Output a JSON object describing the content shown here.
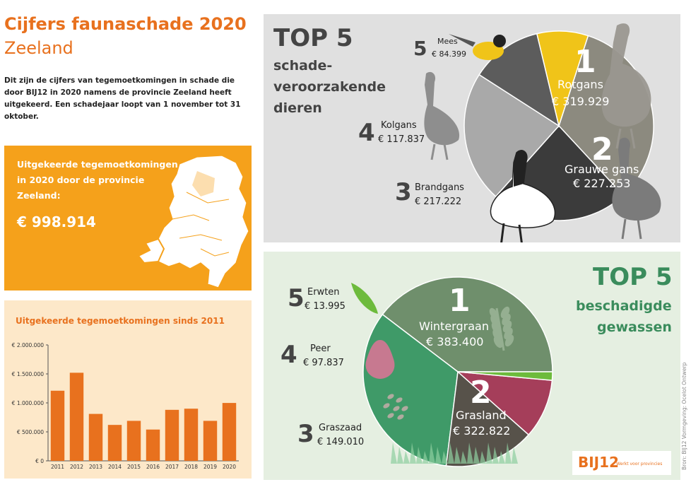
{
  "header": {
    "title": "Cijfers faunaschade 2020",
    "region": "Zeeland",
    "intro": "Dit zijn de cijfers van tegemoetkomingen in schade die door BIJ12 in 2020 namens de provincie Zeeland heeft uitgekeerd. Een schadejaar loopt van 1 november tot 31 oktober."
  },
  "total_box": {
    "label": "Uitgekeerde tegemoetkomingen in 2020 door de provincie Zeeland:",
    "amount": "€ 998.914"
  },
  "colors": {
    "orange": "#f5a11b",
    "bar": "#e8711e",
    "green_title": "#3a8c5c"
  },
  "chart_data": [
    {
      "type": "bar",
      "title": "Uitgekeerde tegemoetkomingen sinds 2011",
      "categories": [
        "2011",
        "2012",
        "2013",
        "2014",
        "2015",
        "2016",
        "2017",
        "2018",
        "2019",
        "2020"
      ],
      "values": [
        1210000,
        1520000,
        810000,
        620000,
        690000,
        540000,
        880000,
        900000,
        690000,
        998914
      ],
      "ylim": [
        0,
        2000000
      ],
      "yticks": [
        0,
        500000,
        1000000,
        1500000,
        2000000
      ],
      "ytick_labels": [
        "€ 0",
        "€ 500.000",
        "€ 1.000.000",
        "€ 1.500.000",
        "€ 2.000.000"
      ],
      "grid": false
    },
    {
      "type": "pie",
      "title": "TOP 5",
      "subtitle": [
        "schade-",
        "veroorzakende",
        "dieren"
      ],
      "slices": [
        {
          "rank": "1",
          "name": "Rotgans",
          "value": 319929,
          "label": "€ 319.929",
          "color": "#8c8a7f"
        },
        {
          "rank": "2",
          "name": "Grauwe gans",
          "value": 227253,
          "label": "€ 227.253",
          "color": "#3b3b3b"
        },
        {
          "rank": "3",
          "name": "Brandgans",
          "value": 217222,
          "label": "€ 217.222",
          "color": "#a9a9a9"
        },
        {
          "rank": "4",
          "name": "Kolgans",
          "value": 117837,
          "label": "€ 117.837",
          "color": "#5c5c5c"
        },
        {
          "rank": "5",
          "name": "Mees",
          "value": 84399,
          "label": "€ 84.399",
          "color": "#f0c419"
        }
      ]
    },
    {
      "type": "pie",
      "title": "TOP 5",
      "subtitle": [
        "beschadigde",
        "gewassen"
      ],
      "slices": [
        {
          "rank": "1",
          "name": "Wintergraan",
          "value": 383400,
          "label": "€ 383.400",
          "color": "#6f8f6c"
        },
        {
          "rank": "2",
          "name": "Grasland",
          "value": 322822,
          "label": "€ 322.822",
          "color": "#3f9a68"
        },
        {
          "rank": "3",
          "name": "Graszaad",
          "value": 149010,
          "label": "€ 149.010",
          "color": "#57524a"
        },
        {
          "rank": "4",
          "name": "Peer",
          "value": 97837,
          "label": "€ 97.837",
          "color": "#a53e5a"
        },
        {
          "rank": "5",
          "name": "Erwten",
          "value": 13995,
          "label": "€ 13.995",
          "color": "#6dbb3c"
        }
      ]
    }
  ],
  "credit": "Bron: BIJ12  Vormgeving: Ocelot Ontwerp",
  "logo": {
    "text": "BIJ12",
    "tagline": "Werkt voor provincies"
  }
}
